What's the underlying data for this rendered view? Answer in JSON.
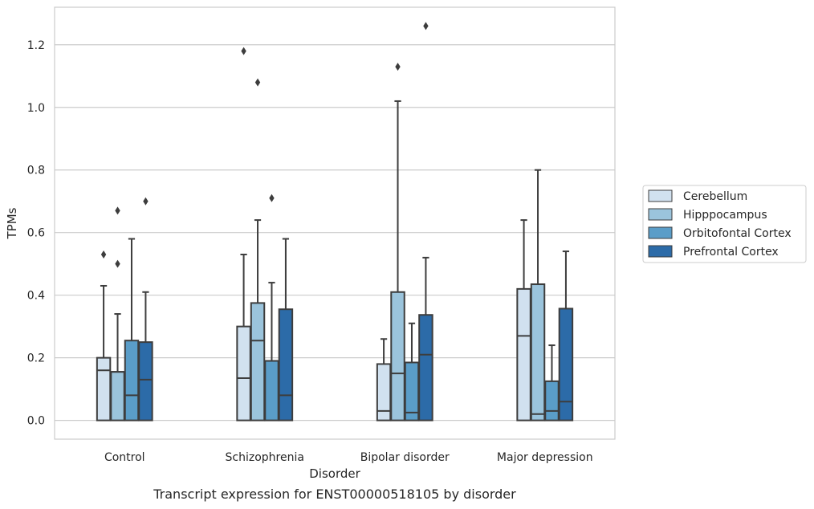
{
  "caption": "Transcript expression for ENST00000518105 by disorder",
  "chart_data": {
    "type": "boxplot",
    "xlabel": "Disorder",
    "ylabel": "TPMs",
    "ylim": [
      -0.06,
      1.32
    ],
    "yticks": [
      0.0,
      0.2,
      0.4,
      0.6,
      0.8,
      1.0,
      1.2
    ],
    "ytick_labels": [
      "0.0",
      "0.2",
      "0.4",
      "0.6",
      "0.8",
      "1.0",
      "1.2"
    ],
    "grid": "horizontal",
    "legend_position": "right",
    "categories": [
      "Control",
      "Schizophrenia",
      "Bipolar disorder",
      "Major depression"
    ],
    "series": [
      {
        "name": "Cerebellum",
        "color": "#d1e1ef",
        "boxes": [
          {
            "whislo": 0.0,
            "q1": 0.0,
            "med": 0.16,
            "q3": 0.2,
            "whishi": 0.43,
            "fliers": [
              0.53
            ]
          },
          {
            "whislo": 0.0,
            "q1": 0.0,
            "med": 0.135,
            "q3": 0.3,
            "whishi": 0.53,
            "fliers": [
              1.18
            ]
          },
          {
            "whislo": 0.0,
            "q1": 0.0,
            "med": 0.03,
            "q3": 0.18,
            "whishi": 0.26,
            "fliers": []
          },
          {
            "whislo": 0.0,
            "q1": 0.0,
            "med": 0.27,
            "q3": 0.42,
            "whishi": 0.64,
            "fliers": []
          }
        ]
      },
      {
        "name": "Hipppocampus",
        "color": "#9bc4dc",
        "boxes": [
          {
            "whislo": 0.0,
            "q1": 0.0,
            "med": 0.155,
            "q3": 0.155,
            "whishi": 0.34,
            "fliers": [
              0.5,
              0.67
            ]
          },
          {
            "whislo": 0.0,
            "q1": 0.0,
            "med": 0.255,
            "q3": 0.375,
            "whishi": 0.64,
            "fliers": [
              1.08
            ]
          },
          {
            "whislo": 0.0,
            "q1": 0.0,
            "med": 0.15,
            "q3": 0.41,
            "whishi": 1.02,
            "fliers": [
              1.13
            ]
          },
          {
            "whislo": 0.0,
            "q1": 0.0,
            "med": 0.02,
            "q3": 0.435,
            "whishi": 0.8,
            "fliers": []
          }
        ]
      },
      {
        "name": "Orbitofontal Cortex",
        "color": "#5a9dc8",
        "boxes": [
          {
            "whislo": 0.0,
            "q1": 0.0,
            "med": 0.08,
            "q3": 0.255,
            "whishi": 0.58,
            "fliers": []
          },
          {
            "whislo": 0.0,
            "q1": 0.0,
            "med": 0.19,
            "q3": 0.19,
            "whishi": 0.44,
            "fliers": [
              0.71
            ]
          },
          {
            "whislo": 0.0,
            "q1": 0.0,
            "med": 0.025,
            "q3": 0.185,
            "whishi": 0.31,
            "fliers": []
          },
          {
            "whislo": 0.0,
            "q1": 0.0,
            "med": 0.03,
            "q3": 0.125,
            "whishi": 0.24,
            "fliers": []
          }
        ]
      },
      {
        "name": "Prefrontal Cortex",
        "color": "#2c6ba8",
        "boxes": [
          {
            "whislo": 0.0,
            "q1": 0.0,
            "med": 0.13,
            "q3": 0.25,
            "whishi": 0.41,
            "fliers": [
              0.7
            ]
          },
          {
            "whislo": 0.0,
            "q1": 0.0,
            "med": 0.08,
            "q3": 0.355,
            "whishi": 0.58,
            "fliers": []
          },
          {
            "whislo": 0.0,
            "q1": 0.0,
            "med": 0.21,
            "q3": 0.337,
            "whishi": 0.52,
            "fliers": [
              1.26
            ]
          },
          {
            "whislo": 0.0,
            "q1": 0.0,
            "med": 0.06,
            "q3": 0.357,
            "whishi": 0.54,
            "fliers": []
          }
        ]
      }
    ]
  }
}
